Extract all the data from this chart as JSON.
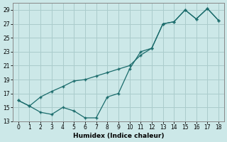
{
  "xlabel": "Humidex (Indice chaleur)",
  "bg_color": "#cce8e8",
  "grid_color": "#aacccc",
  "line_color": "#1a6b6b",
  "line1_x": [
    0,
    1,
    2,
    3,
    4,
    5,
    6,
    7,
    8,
    9,
    10,
    11,
    12,
    13,
    14,
    15,
    16,
    17,
    18
  ],
  "line1_y": [
    16.0,
    15.2,
    14.3,
    14.0,
    15.0,
    14.5,
    13.5,
    13.5,
    16.5,
    17.0,
    20.5,
    23.0,
    23.5,
    27.0,
    27.3,
    29.0,
    27.7,
    29.2,
    27.5
  ],
  "line2_x": [
    0,
    1,
    2,
    3,
    4,
    5,
    6,
    7,
    8,
    9,
    10,
    11,
    12,
    13,
    14,
    15,
    16,
    17,
    18
  ],
  "line2_y": [
    16.0,
    15.2,
    16.5,
    17.3,
    18.0,
    18.8,
    19.0,
    19.5,
    20.0,
    20.5,
    21.0,
    22.5,
    23.5,
    27.0,
    27.3,
    29.0,
    27.7,
    29.2,
    27.5
  ],
  "ylim": [
    13,
    30
  ],
  "yticks": [
    13,
    15,
    17,
    19,
    21,
    23,
    25,
    27,
    29
  ],
  "xlim": [
    -0.5,
    18.5
  ],
  "xticks": [
    0,
    1,
    2,
    3,
    4,
    5,
    6,
    7,
    8,
    9,
    10,
    11,
    12,
    13,
    14,
    15,
    16,
    17,
    18
  ]
}
